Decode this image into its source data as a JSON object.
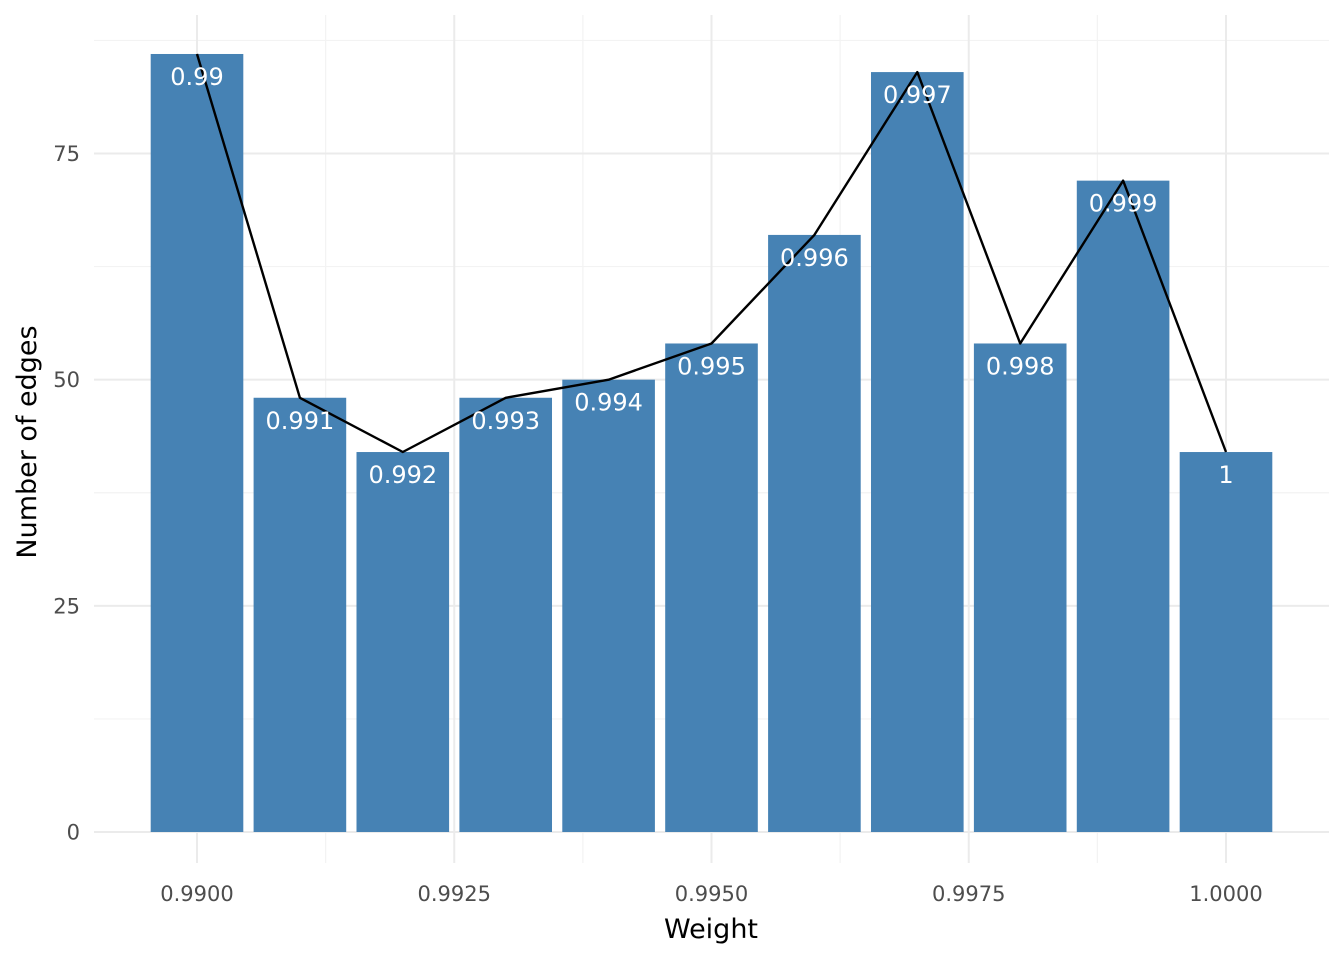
{
  "chart_data": {
    "type": "bar",
    "title": "",
    "xlabel": "Weight",
    "ylabel": "Number of edges",
    "x": [
      0.99,
      0.991,
      0.992,
      0.993,
      0.994,
      0.995,
      0.996,
      0.997,
      0.998,
      0.999,
      1.0
    ],
    "values": [
      86,
      48,
      42,
      48,
      50,
      54,
      66,
      84,
      54,
      72,
      42
    ],
    "bar_labels": [
      "0.99",
      "0.991",
      "0.992",
      "0.993",
      "0.994",
      "0.995",
      "0.996",
      "0.997",
      "0.998",
      "0.999",
      "1"
    ],
    "overlay_line": {
      "type": "line",
      "x": [
        0.99,
        0.991,
        0.992,
        0.993,
        0.994,
        0.995,
        0.996,
        0.997,
        0.998,
        0.999,
        1.0
      ],
      "values": [
        86,
        48,
        42,
        48,
        50,
        54,
        66,
        84,
        54,
        72,
        42
      ],
      "color": "#000000"
    },
    "xlim": [
      0.989,
      1.001
    ],
    "ylim": [
      0,
      88
    ],
    "x_ticks": [
      0.99,
      0.9925,
      0.995,
      0.9975,
      1.0
    ],
    "x_tick_labels": [
      "0.9900",
      "0.9925",
      "0.9950",
      "0.9975",
      "1.0000"
    ],
    "y_ticks": [
      0,
      25,
      50,
      75
    ],
    "y_tick_labels": [
      "0",
      "25",
      "50",
      "75"
    ],
    "bar_color": "#4682b4",
    "bar_label_color": "#ffffff",
    "grid": true,
    "legend": "none"
  }
}
